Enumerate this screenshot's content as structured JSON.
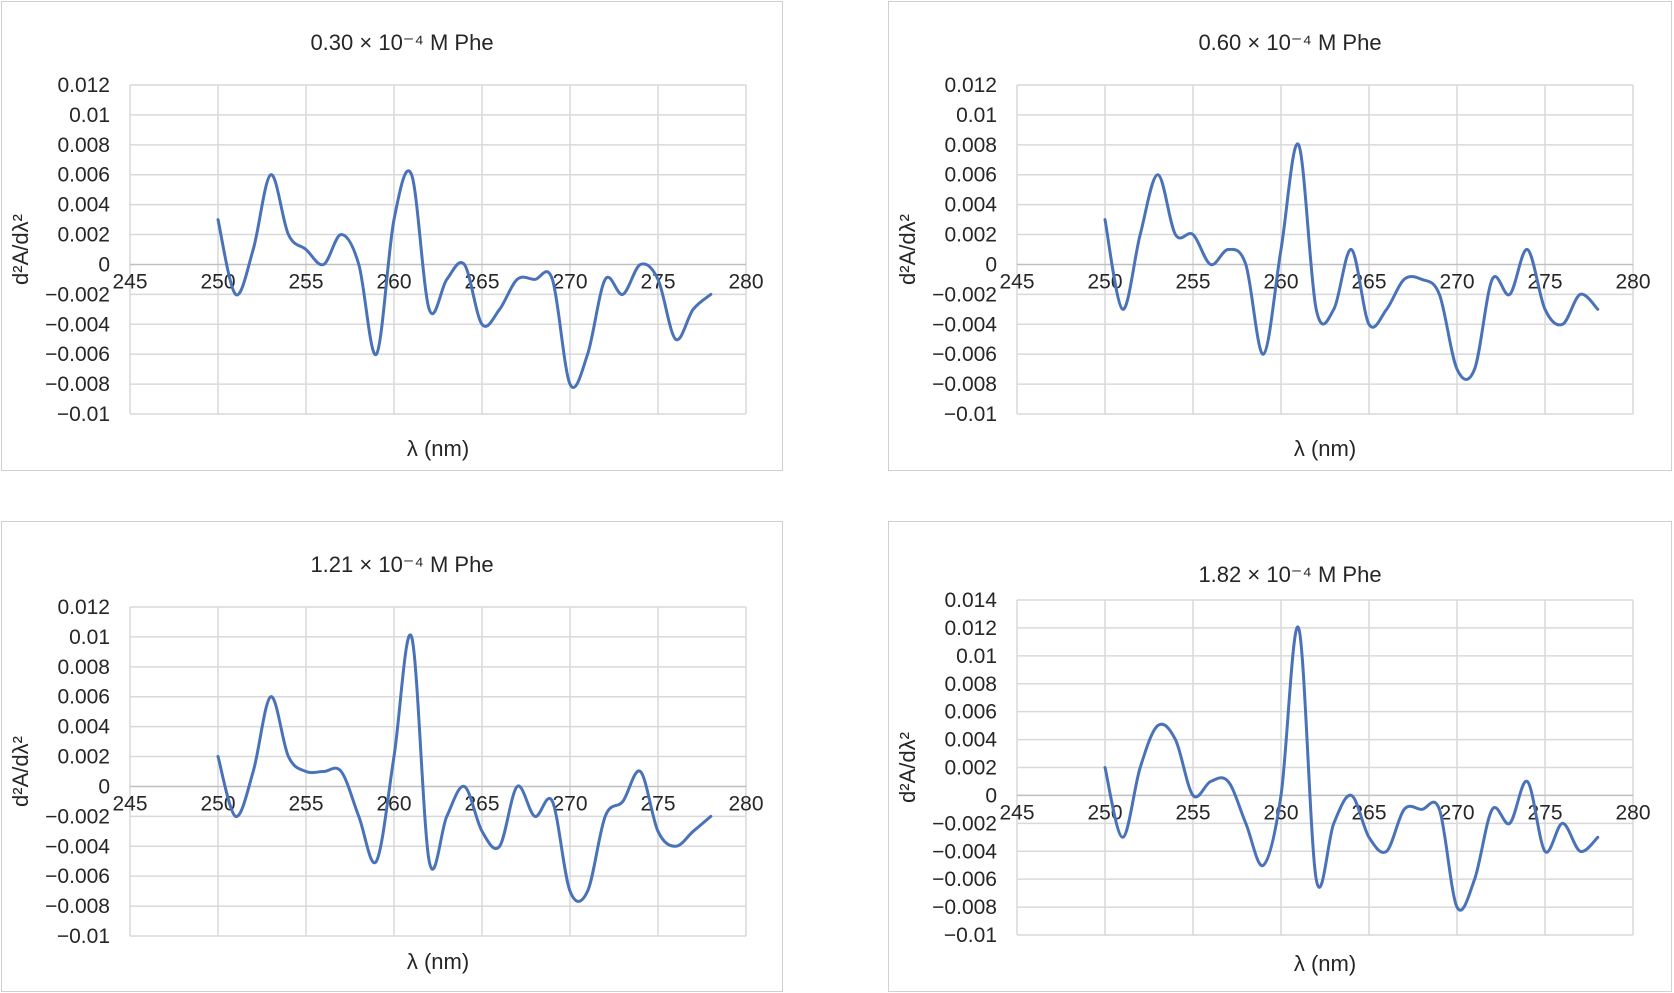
{
  "chart_data": [
    {
      "type": "line",
      "title": "0.30 × 10⁻⁴ M Phe",
      "xlabel": "λ (nm)",
      "ylabel": "d²A/dλ²",
      "xlim": [
        245,
        280
      ],
      "ylim": [
        -0.01,
        0.012
      ],
      "x_ticks": [
        "245",
        "250",
        "255",
        "260",
        "265",
        "270",
        "275",
        "280"
      ],
      "y_ticks": [
        "0.012",
        "0.01",
        "0.008",
        "0.006",
        "0.004",
        "0.002",
        "0",
        "−0.002",
        "−0.004",
        "−0.006",
        "−0.008",
        "−0.01"
      ],
      "color": "#4a72b8",
      "x": [
        250,
        251,
        252,
        253,
        254,
        255,
        256,
        257,
        258,
        259,
        260,
        261,
        262,
        263,
        264,
        265,
        266,
        267,
        268,
        269,
        270,
        271,
        272,
        273,
        274,
        275,
        276,
        277,
        278
      ],
      "y": [
        0.003,
        -0.002,
        0.001,
        0.006,
        0.002,
        0.001,
        0.0,
        0.002,
        0.0,
        -0.006,
        0.003,
        0.006,
        -0.003,
        -0.001,
        0.0,
        -0.004,
        -0.003,
        -0.001,
        -0.001,
        -0.001,
        -0.008,
        -0.006,
        -0.001,
        -0.002,
        0.0,
        -0.001,
        -0.005,
        -0.003,
        -0.002
      ]
    },
    {
      "type": "line",
      "title": "0.60 × 10⁻⁴ M Phe",
      "xlabel": "λ (nm)",
      "ylabel": "d²A/dλ²",
      "xlim": [
        245,
        280
      ],
      "ylim": [
        -0.01,
        0.012
      ],
      "x_ticks": [
        "245",
        "250",
        "255",
        "260",
        "265",
        "270",
        "275",
        "280"
      ],
      "y_ticks": [
        "0.012",
        "0.01",
        "0.008",
        "0.006",
        "0.004",
        "0.002",
        "0",
        "−0.002",
        "−0.004",
        "−0.006",
        "−0.008",
        "−0.01"
      ],
      "color": "#4a72b8",
      "x": [
        250,
        251,
        252,
        253,
        254,
        255,
        256,
        257,
        258,
        259,
        260,
        261,
        262,
        263,
        264,
        265,
        266,
        267,
        268,
        269,
        270,
        271,
        272,
        273,
        274,
        275,
        276,
        277,
        278
      ],
      "y": [
        0.003,
        -0.003,
        0.002,
        0.006,
        0.002,
        0.002,
        0.0,
        0.001,
        0.0,
        -0.006,
        0.001,
        0.008,
        -0.003,
        -0.003,
        0.001,
        -0.004,
        -0.003,
        -0.001,
        -0.001,
        -0.002,
        -0.007,
        -0.007,
        -0.001,
        -0.002,
        0.001,
        -0.003,
        -0.004,
        -0.002,
        -0.003
      ]
    },
    {
      "type": "line",
      "title": "1.21 × 10⁻⁴ M Phe",
      "xlabel": "λ (nm)",
      "ylabel": "d²A/dλ²",
      "xlim": [
        245,
        280
      ],
      "ylim": [
        -0.01,
        0.012
      ],
      "x_ticks": [
        "245",
        "250",
        "255",
        "260",
        "265",
        "270",
        "275",
        "280"
      ],
      "y_ticks": [
        "0.012",
        "0.01",
        "0.008",
        "0.006",
        "0.004",
        "0.002",
        "0",
        "−0.002",
        "−0.004",
        "−0.006",
        "−0.008",
        "−0.01"
      ],
      "color": "#4a72b8",
      "x": [
        250,
        251,
        252,
        253,
        254,
        255,
        256,
        257,
        258,
        259,
        260,
        261,
        262,
        263,
        264,
        265,
        266,
        267,
        268,
        269,
        270,
        271,
        272,
        273,
        274,
        275,
        276,
        277,
        278
      ],
      "y": [
        0.002,
        -0.002,
        0.001,
        0.006,
        0.002,
        0.001,
        0.001,
        0.001,
        -0.002,
        -0.005,
        0.002,
        0.01,
        -0.005,
        -0.002,
        0.0,
        -0.003,
        -0.004,
        0.0,
        -0.002,
        -0.001,
        -0.007,
        -0.007,
        -0.002,
        -0.001,
        0.001,
        -0.003,
        -0.004,
        -0.003,
        -0.002
      ]
    },
    {
      "type": "line",
      "title": "1.82 × 10⁻⁴ M Phe",
      "xlabel": "λ (nm)",
      "ylabel": "d²A/dλ²",
      "xlim": [
        245,
        280
      ],
      "ylim": [
        -0.01,
        0.014
      ],
      "x_ticks": [
        "245",
        "250",
        "255",
        "260",
        "265",
        "270",
        "275",
        "280"
      ],
      "y_ticks": [
        "0.014",
        "0.012",
        "0.01",
        "0.008",
        "0.006",
        "0.004",
        "0.002",
        "0",
        "−0.002",
        "−0.004",
        "−0.006",
        "−0.008",
        "−0.01"
      ],
      "color": "#4a72b8",
      "x": [
        250,
        251,
        252,
        253,
        254,
        255,
        256,
        257,
        258,
        259,
        260,
        261,
        262,
        263,
        264,
        265,
        266,
        267,
        268,
        269,
        270,
        271,
        272,
        273,
        274,
        275,
        276,
        277,
        278
      ],
      "y": [
        0.002,
        -0.003,
        0.002,
        0.005,
        0.004,
        0.0,
        0.001,
        0.001,
        -0.002,
        -0.005,
        0.0,
        0.012,
        -0.006,
        -0.002,
        0.0,
        -0.003,
        -0.004,
        -0.001,
        -0.001,
        -0.001,
        -0.008,
        -0.006,
        -0.001,
        -0.002,
        0.001,
        -0.004,
        -0.002,
        -0.004,
        -0.003
      ]
    }
  ]
}
